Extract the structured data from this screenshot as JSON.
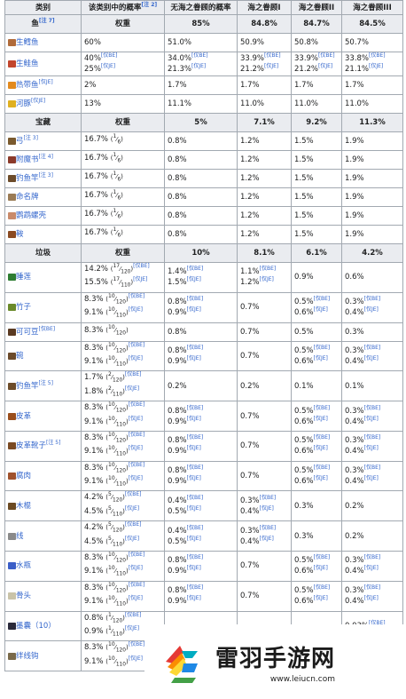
{
  "header": {
    "c0": "类别",
    "c1": "该类别中的概率",
    "c1_sup": "[注 2]",
    "c2": "无海之眷顾的概率",
    "c3": "海之眷顾I",
    "c4": "海之眷顾II",
    "c5": "海之眷顾III"
  },
  "sections": [
    {
      "name": "鱼",
      "sup": "[注 7]",
      "weight_label": "权重",
      "vals": [
        "85%",
        "84.8%",
        "84.7%",
        "84.5%"
      ],
      "rows": [
        {
          "icon": "raw-cod-icon",
          "color": "#b06b3a",
          "name": "生鳕鱼",
          "sup": "",
          "p": [
            "60%"
          ],
          "v": [
            [
              "51.0%"
            ],
            [
              "50.9%"
            ],
            [
              "50.8%"
            ],
            [
              "50.7%"
            ]
          ]
        },
        {
          "icon": "raw-salmon-icon",
          "color": "#c2452d",
          "name": "生鲑鱼",
          "sup": "",
          "p": [
            "40%[仅BE]",
            "25%[仅JE]"
          ],
          "v": [
            [
              "34.0%[仅BE]",
              "21.3%[仅JE]"
            ],
            [
              "33.9%[仅BE]",
              "21.2%[仅JE]"
            ],
            [
              "33.9%[仅BE]",
              "21.2%[仅JE]"
            ],
            [
              "33.8%[仅BE]",
              "21.1%[仅JE]"
            ]
          ]
        },
        {
          "icon": "tropical-fish-icon",
          "color": "#e38a1e",
          "name": "热带鱼",
          "sup": "[仅JE]",
          "p": [
            "2%"
          ],
          "v": [
            [
              "1.7%"
            ],
            [
              "1.7%"
            ],
            [
              "1.7%"
            ],
            [
              "1.7%"
            ]
          ]
        },
        {
          "icon": "pufferfish-icon",
          "color": "#e0b020",
          "name": "河豚",
          "sup": "[仅JE]",
          "p": [
            "13%"
          ],
          "v": [
            [
              "11.1%"
            ],
            [
              "11.0%"
            ],
            [
              "11.0%"
            ],
            [
              "11.0%"
            ]
          ]
        }
      ]
    },
    {
      "name": "宝藏",
      "sup": "",
      "weight_label": "权重",
      "vals": [
        "5%",
        "7.1%",
        "9.2%",
        "11.3%"
      ],
      "rows": [
        {
          "icon": "bow-icon",
          "color": "#7a5a2e",
          "name": "弓",
          "sup": "[注 3]",
          "p": [
            "16.7% (1⁄6)"
          ],
          "v": [
            [
              "0.8%"
            ],
            [
              "1.2%"
            ],
            [
              "1.5%"
            ],
            [
              "1.9%"
            ]
          ]
        },
        {
          "icon": "enchanted-book-icon",
          "color": "#8b3a2a",
          "name": "附魔书",
          "sup": "[注 4]",
          "p": [
            "16.7% (1⁄6)"
          ],
          "v": [
            [
              "0.8%"
            ],
            [
              "1.2%"
            ],
            [
              "1.5%"
            ],
            [
              "1.9%"
            ]
          ]
        },
        {
          "icon": "fishing-rod-icon",
          "color": "#6d4c2a",
          "name": "钓鱼竿",
          "sup": "[注 3]",
          "p": [
            "16.7% (1⁄6)"
          ],
          "v": [
            [
              "0.8%"
            ],
            [
              "1.2%"
            ],
            [
              "1.5%"
            ],
            [
              "1.9%"
            ]
          ]
        },
        {
          "icon": "name-tag-icon",
          "color": "#9a7b55",
          "name": "命名牌",
          "sup": "",
          "p": [
            "16.7% (1⁄6)"
          ],
          "v": [
            [
              "0.8%"
            ],
            [
              "1.2%"
            ],
            [
              "1.5%"
            ],
            [
              "1.9%"
            ]
          ]
        },
        {
          "icon": "nautilus-shell-icon",
          "color": "#c98a6a",
          "name": "鹦鹉螺壳",
          "sup": "",
          "p": [
            "16.7% (1⁄6)"
          ],
          "v": [
            [
              "0.8%"
            ],
            [
              "1.2%"
            ],
            [
              "1.5%"
            ],
            [
              "1.9%"
            ]
          ]
        },
        {
          "icon": "saddle-icon",
          "color": "#8a4a22",
          "name": "鞍",
          "sup": "",
          "p": [
            "16.7% (1⁄6)"
          ],
          "v": [
            [
              "0.8%"
            ],
            [
              "1.2%"
            ],
            [
              "1.5%"
            ],
            [
              "1.9%"
            ]
          ]
        }
      ]
    },
    {
      "name": "垃圾",
      "sup": "",
      "weight_label": "权重",
      "vals": [
        "10%",
        "8.1%",
        "6.1%",
        "4.2%"
      ],
      "rows": [
        {
          "icon": "lily-pad-icon",
          "color": "#2e7d32",
          "name": "睡莲",
          "sup": "",
          "p": [
            "14.2% (17⁄120)[仅BE]",
            "15.5% (17⁄110)[仅JE]"
          ],
          "v": [
            [
              "1.4%[仅BE]",
              "1.5%[仅JE]"
            ],
            [
              "1.1%[仅BE]",
              "1.2%[仅JE]"
            ],
            [
              "0.9%"
            ],
            [
              "0.6%"
            ]
          ]
        },
        {
          "icon": "stick-icon",
          "color": "#6a8a2a",
          "name": "竹子",
          "sup": "",
          "p": [
            "8.3% (10⁄120)[仅BE]",
            "9.1% (10⁄110)[仅JE]"
          ],
          "v": [
            [
              "0.8%[仅BE]",
              "0.9%[仅JE]"
            ],
            [
              "0.7%"
            ],
            [
              "0.5%[仅BE]",
              "0.6%[仅JE]"
            ],
            [
              "0.3%[仅BE]",
              "0.4%[仅JE]"
            ]
          ]
        },
        {
          "icon": "cocoa-beans-icon",
          "color": "#5a3a22",
          "name": "可可豆",
          "sup": "[仅BE]",
          "p": [
            "8.3% (10⁄120)"
          ],
          "v": [
            [
              "0.8%"
            ],
            [
              "0.7%"
            ],
            [
              "0.5%"
            ],
            [
              "0.3%"
            ]
          ]
        },
        {
          "icon": "bowl-icon",
          "color": "#6b4a2a",
          "name": "碗",
          "sup": "",
          "p": [
            "8.3% (10⁄120)[仅BE]",
            "9.1% (10⁄110)[仅JE]"
          ],
          "v": [
            [
              "0.8%[仅BE]",
              "0.9%[仅JE]"
            ],
            [
              "0.7%"
            ],
            [
              "0.5%[仅BE]",
              "0.6%[仅JE]"
            ],
            [
              "0.3%[仅BE]",
              "0.4%[仅JE]"
            ]
          ]
        },
        {
          "icon": "fishing-rod-icon",
          "color": "#6d4c2a",
          "name": "钓鱼竿",
          "sup": "[注 5]",
          "p": [
            "1.7% (2⁄120)[仅BE]",
            "1.8% (2⁄110)[仅JE]"
          ],
          "v": [
            [
              "0.2%"
            ],
            [
              "0.2%"
            ],
            [
              "0.1%"
            ],
            [
              "0.1%"
            ]
          ]
        },
        {
          "icon": "leather-icon",
          "color": "#9a4e1c",
          "name": "皮革",
          "sup": "",
          "p": [
            "8.3% (10⁄120)[仅BE]",
            "9.1% (10⁄110)[仅JE]"
          ],
          "v": [
            [
              "0.8%[仅BE]",
              "0.9%[仅JE]"
            ],
            [
              "0.7%"
            ],
            [
              "0.5%[仅BE]",
              "0.6%[仅JE]"
            ],
            [
              "0.3%[仅BE]",
              "0.4%[仅JE]"
            ]
          ]
        },
        {
          "icon": "leather-boots-icon",
          "color": "#7a4a22",
          "name": "皮革靴子",
          "sup": "[注 5]",
          "p": [
            "8.3% (10⁄120)[仅BE]",
            "9.1% (10⁄110)[仅JE]"
          ],
          "v": [
            [
              "0.8%[仅BE]",
              "0.9%[仅JE]"
            ],
            [
              "0.7%"
            ],
            [
              "0.5%[仅BE]",
              "0.6%[仅JE]"
            ],
            [
              "0.3%[仅BE]",
              "0.4%[仅JE]"
            ]
          ]
        },
        {
          "icon": "rotten-flesh-icon",
          "color": "#a0522d",
          "name": "腐肉",
          "sup": "",
          "p": [
            "8.3% (10⁄120)[仅BE]",
            "9.1% (10⁄110)[仅JE]"
          ],
          "v": [
            [
              "0.8%[仅BE]",
              "0.9%[仅JE]"
            ],
            [
              "0.7%"
            ],
            [
              "0.5%[仅BE]",
              "0.6%[仅JE]"
            ],
            [
              "0.3%[仅BE]",
              "0.4%[仅JE]"
            ]
          ]
        },
        {
          "icon": "stick-icon",
          "color": "#6b4a22",
          "name": "木棍",
          "sup": "",
          "p": [
            "4.2% (5⁄120)[仅BE]",
            "4.5% (5⁄110)[仅JE]"
          ],
          "v": [
            [
              "0.4%[仅BE]",
              "0.5%[仅JE]"
            ],
            [
              "0.3%[仅BE]",
              "0.4%[仅JE]"
            ],
            [
              "0.3%"
            ],
            [
              "0.2%"
            ]
          ]
        },
        {
          "icon": "string-icon",
          "color": "#8a8a8a",
          "name": "线",
          "sup": "",
          "p": [
            "4.2% (5⁄120)[仅BE]",
            "4.5% (5⁄110)[仅JE]"
          ],
          "v": [
            [
              "0.4%[仅BE]",
              "0.5%[仅JE]"
            ],
            [
              "0.3%[仅BE]",
              "0.4%[仅JE]"
            ],
            [
              "0.3%"
            ],
            [
              "0.2%"
            ]
          ]
        },
        {
          "icon": "water-bottle-icon",
          "color": "#3a5ec8",
          "name": "水瓶",
          "sup": "",
          "p": [
            "8.3% (10⁄120)[仅BE]",
            "9.1% (10⁄110)[仅JE]"
          ],
          "v": [
            [
              "0.8%[仅BE]",
              "0.9%[仅JE]"
            ],
            [
              "0.7%"
            ],
            [
              "0.5%[仅BE]",
              "0.6%[仅JE]"
            ],
            [
              "0.3%[仅BE]",
              "0.4%[仅JE]"
            ]
          ]
        },
        {
          "icon": "bone-icon",
          "color": "#c9c3a8",
          "name": "骨头",
          "sup": "",
          "p": [
            "8.3% (10⁄120)[仅BE]",
            "9.1% (10⁄110)[仅JE]"
          ],
          "v": [
            [
              "0.8%[仅BE]",
              "0.9%[仅JE]"
            ],
            [
              "0.7%"
            ],
            [
              "0.5%[仅BE]",
              "0.6%[仅JE]"
            ],
            [
              "0.3%[仅BE]",
              "0.4%[仅JE]"
            ]
          ]
        },
        {
          "icon": "ink-sac-icon",
          "color": "#2a2a3a",
          "name": "墨囊（10）",
          "sup": "",
          "p": [
            "0.8% (1⁄120)[仅BE]",
            "0.9% (1⁄110)[仅JE]"
          ],
          "v": [
            [
              ""
            ],
            [
              ""
            ],
            [
              ""
            ],
            [
              "0.03%[仅BE]"
            ]
          ]
        },
        {
          "icon": "tripwire-hook-icon",
          "color": "#7a6a4a",
          "name": "绊线钩",
          "sup": "",
          "p": [
            "8.3% (10⁄120)[仅BE]",
            "9.1% (10⁄110)[仅JE]"
          ],
          "v": [
            [
              ""
            ],
            [
              ""
            ],
            [
              ""
            ],
            [
              ""
            ]
          ]
        }
      ]
    }
  ],
  "watermark": {
    "title": "雷羽手游网",
    "url": "www.leiucn.com"
  }
}
